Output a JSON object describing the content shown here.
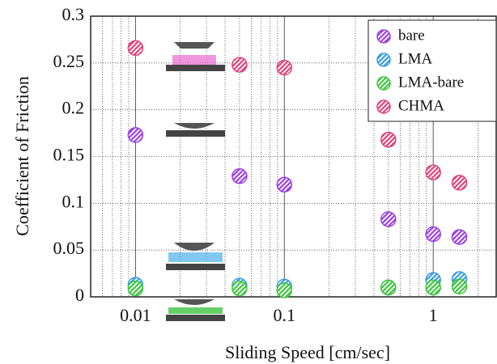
{
  "chart_data": {
    "type": "scatter",
    "xlabel": "Sliding Speed [cm/sec]",
    "ylabel": "Coefficient of Friction",
    "xscale": "log",
    "xlim": [
      0.005,
      2.65
    ],
    "ylim": [
      0,
      0.3
    ],
    "xticks": [
      0.01,
      0.1,
      1
    ],
    "xminorticks": [
      0.006,
      0.007,
      0.008,
      0.009,
      0.02,
      0.03,
      0.04,
      0.05,
      0.06,
      0.07,
      0.08,
      0.09,
      0.2,
      0.3,
      0.4,
      0.5,
      0.6,
      0.7,
      0.8,
      0.9,
      2
    ],
    "yticks": [
      0,
      0.05,
      0.1,
      0.15,
      0.2,
      0.25,
      0.3
    ],
    "grid": true,
    "legend": "upper right",
    "series": [
      {
        "name": "bare",
        "color": "#9b3fe0",
        "x": [
          0.01,
          0.05,
          0.1,
          0.5,
          1,
          1.5
        ],
        "values": [
          0.173,
          0.129,
          0.12,
          0.083,
          0.067,
          0.064
        ]
      },
      {
        "name": "LMA",
        "color": "#3a9be0",
        "x": [
          0.01,
          0.05,
          0.1,
          0.5,
          1,
          1.5
        ],
        "values": [
          0.013,
          0.012,
          0.011,
          0.01,
          0.018,
          0.019
        ]
      },
      {
        "name": "LMA-bare",
        "color": "#3ec43e",
        "x": [
          0.01,
          0.05,
          0.1,
          0.5,
          1,
          1.5
        ],
        "values": [
          0.009,
          0.009,
          0.007,
          0.01,
          0.01,
          0.011
        ]
      },
      {
        "name": "CHMA",
        "color": "#e0407a",
        "x": [
          0.01,
          0.05,
          0.1,
          0.5,
          1,
          1.5
        ],
        "values": [
          0.266,
          0.248,
          0.245,
          0.168,
          0.133,
          0.122
        ]
      }
    ]
  }
}
